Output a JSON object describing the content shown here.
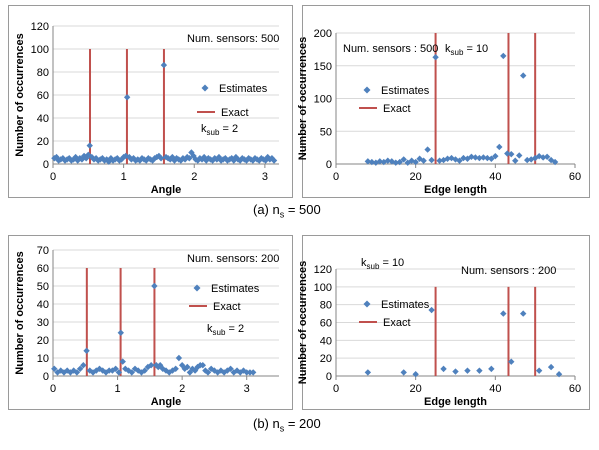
{
  "captions": {
    "a": {
      "prefix": "(a) n",
      "sub": "s",
      "suffix": " = 500"
    },
    "b": {
      "prefix": "(b) n",
      "sub": "s",
      "suffix": " = 200"
    }
  },
  "colors": {
    "estimate": "#4f81bd",
    "exact": "#c0504d",
    "grid": "#d9d9d9",
    "axis": "#868686"
  },
  "chart_data": [
    {
      "id": "a-angle",
      "type": "scatter",
      "xlabel": "Angle",
      "ylabel": "Number of occurrences",
      "xlim": [
        0,
        3.2
      ],
      "ylim": [
        0,
        120
      ],
      "xticks": [
        0,
        1,
        2,
        3
      ],
      "yticks": [
        0,
        20,
        40,
        60,
        80,
        100,
        120
      ],
      "grid": true,
      "legend_position": "right",
      "annotations": {
        "sensors": "Num. sensors: 500",
        "k_prefix": "k",
        "k_sub": "sub",
        "k_suffix": " = 2"
      },
      "series": [
        {
          "name": "Estimates",
          "kind": "markers",
          "points": [
            [
              0.02,
              5
            ],
            [
              0.05,
              6
            ],
            [
              0.08,
              3
            ],
            [
              0.11,
              4
            ],
            [
              0.14,
              5
            ],
            [
              0.17,
              3
            ],
            [
              0.2,
              4
            ],
            [
              0.23,
              5
            ],
            [
              0.26,
              3
            ],
            [
              0.29,
              4
            ],
            [
              0.32,
              6
            ],
            [
              0.35,
              3
            ],
            [
              0.38,
              5
            ],
            [
              0.41,
              4
            ],
            [
              0.44,
              7
            ],
            [
              0.47,
              5
            ],
            [
              0.5,
              8
            ],
            [
              0.52,
              16
            ],
            [
              0.55,
              6
            ],
            [
              0.58,
              4
            ],
            [
              0.61,
              5
            ],
            [
              0.64,
              3
            ],
            [
              0.67,
              4
            ],
            [
              0.7,
              5
            ],
            [
              0.73,
              3
            ],
            [
              0.76,
              4
            ],
            [
              0.79,
              2
            ],
            [
              0.82,
              5
            ],
            [
              0.85,
              3
            ],
            [
              0.88,
              4
            ],
            [
              0.91,
              5
            ],
            [
              0.94,
              3
            ],
            [
              0.97,
              4
            ],
            [
              1.0,
              6
            ],
            [
              1.03,
              7
            ],
            [
              1.05,
              58
            ],
            [
              1.08,
              6
            ],
            [
              1.11,
              4
            ],
            [
              1.14,
              5
            ],
            [
              1.17,
              3
            ],
            [
              1.2,
              4
            ],
            [
              1.23,
              3
            ],
            [
              1.26,
              5
            ],
            [
              1.29,
              4
            ],
            [
              1.32,
              3
            ],
            [
              1.35,
              5
            ],
            [
              1.38,
              4
            ],
            [
              1.41,
              3
            ],
            [
              1.44,
              5
            ],
            [
              1.47,
              6
            ],
            [
              1.5,
              7
            ],
            [
              1.53,
              5
            ],
            [
              1.57,
              86
            ],
            [
              1.6,
              6
            ],
            [
              1.63,
              5
            ],
            [
              1.66,
              4
            ],
            [
              1.69,
              6
            ],
            [
              1.72,
              3
            ],
            [
              1.75,
              5
            ],
            [
              1.78,
              4
            ],
            [
              1.81,
              3
            ],
            [
              1.84,
              5
            ],
            [
              1.87,
              4
            ],
            [
              1.9,
              6
            ],
            [
              1.93,
              5
            ],
            [
              1.96,
              10
            ],
            [
              1.99,
              7
            ],
            [
              2.02,
              4
            ],
            [
              2.05,
              3
            ],
            [
              2.08,
              5
            ],
            [
              2.11,
              4
            ],
            [
              2.14,
              6
            ],
            [
              2.17,
              3
            ],
            [
              2.2,
              5
            ],
            [
              2.23,
              4
            ],
            [
              2.26,
              3
            ],
            [
              2.29,
              5
            ],
            [
              2.32,
              4
            ],
            [
              2.35,
              6
            ],
            [
              2.38,
              3
            ],
            [
              2.41,
              4
            ],
            [
              2.44,
              5
            ],
            [
              2.47,
              3
            ],
            [
              2.5,
              4
            ],
            [
              2.53,
              5
            ],
            [
              2.56,
              3
            ],
            [
              2.59,
              6
            ],
            [
              2.62,
              4
            ],
            [
              2.65,
              3
            ],
            [
              2.68,
              5
            ],
            [
              2.71,
              4
            ],
            [
              2.74,
              3
            ],
            [
              2.77,
              5
            ],
            [
              2.8,
              4
            ],
            [
              2.83,
              3
            ],
            [
              2.86,
              5
            ],
            [
              2.89,
              4
            ],
            [
              2.92,
              3
            ],
            [
              2.95,
              5
            ],
            [
              2.98,
              4
            ],
            [
              3.01,
              3
            ],
            [
              3.04,
              6
            ],
            [
              3.07,
              4
            ],
            [
              3.1,
              5
            ],
            [
              3.13,
              3
            ]
          ]
        },
        {
          "name": "Exact",
          "kind": "lines",
          "positions": [
            0.524,
            1.047,
            1.571
          ],
          "height": 100
        }
      ]
    },
    {
      "id": "a-edge",
      "type": "scatter",
      "xlabel": "Edge length",
      "ylabel": "Number of occurrences",
      "xlim": [
        0,
        60
      ],
      "ylim": [
        0,
        200
      ],
      "xticks": [
        0,
        20,
        40,
        60
      ],
      "yticks": [
        0,
        50,
        100,
        150,
        200
      ],
      "grid": true,
      "legend_position": "top-left",
      "annotations": {
        "sensors": "Num. sensors : 500",
        "k_prefix": "k",
        "k_sub": "sub",
        "k_suffix": " = 10"
      },
      "series": [
        {
          "name": "Estimates",
          "kind": "markers",
          "points": [
            [
              8,
              4
            ],
            [
              9,
              3
            ],
            [
              10,
              2
            ],
            [
              11,
              4
            ],
            [
              12,
              3
            ],
            [
              13,
              5
            ],
            [
              14,
              4
            ],
            [
              15,
              2
            ],
            [
              16,
              3
            ],
            [
              17,
              7
            ],
            [
              18,
              2
            ],
            [
              19,
              5
            ],
            [
              20,
              3
            ],
            [
              21,
              8
            ],
            [
              22,
              5
            ],
            [
              23,
              22
            ],
            [
              24,
              6
            ],
            [
              25,
              163
            ],
            [
              26,
              5
            ],
            [
              27,
              6
            ],
            [
              28,
              8
            ],
            [
              29,
              9
            ],
            [
              30,
              7
            ],
            [
              31,
              5
            ],
            [
              32,
              9
            ],
            [
              33,
              8
            ],
            [
              34,
              11
            ],
            [
              35,
              10
            ],
            [
              36,
              9
            ],
            [
              37,
              10
            ],
            [
              38,
              9
            ],
            [
              39,
              8
            ],
            [
              40,
              12
            ],
            [
              41,
              26
            ],
            [
              42,
              165
            ],
            [
              43,
              16
            ],
            [
              44,
              15
            ],
            [
              45,
              5
            ],
            [
              46,
              13
            ],
            [
              47,
              135
            ],
            [
              48,
              6
            ],
            [
              49,
              7
            ],
            [
              50,
              9
            ],
            [
              51,
              12
            ],
            [
              52,
              10
            ],
            [
              53,
              11
            ],
            [
              54,
              6
            ],
            [
              55,
              3
            ]
          ]
        },
        {
          "name": "Exact",
          "kind": "lines",
          "positions": [
            25,
            43.3,
            50
          ],
          "height": 200
        }
      ]
    },
    {
      "id": "b-angle",
      "type": "scatter",
      "xlabel": "Angle",
      "ylabel": "Number of occurrences",
      "xlim": [
        0,
        3.5
      ],
      "ylim": [
        0,
        70
      ],
      "xticks": [
        0,
        1,
        2,
        3
      ],
      "yticks": [
        0,
        10,
        20,
        30,
        40,
        50,
        60,
        70
      ],
      "grid": true,
      "legend_position": "right",
      "annotations": {
        "sensors": "Num. sensors: 200",
        "k_prefix": "k",
        "k_sub": "sub",
        "k_suffix": " = 2"
      },
      "series": [
        {
          "name": "Estimates",
          "kind": "markers",
          "points": [
            [
              0.02,
              4
            ],
            [
              0.07,
              2
            ],
            [
              0.12,
              3
            ],
            [
              0.17,
              2
            ],
            [
              0.22,
              3
            ],
            [
              0.27,
              2
            ],
            [
              0.32,
              3
            ],
            [
              0.37,
              2
            ],
            [
              0.42,
              4
            ],
            [
              0.47,
              6
            ],
            [
              0.52,
              14
            ],
            [
              0.57,
              3
            ],
            [
              0.62,
              2
            ],
            [
              0.67,
              3
            ],
            [
              0.72,
              4
            ],
            [
              0.77,
              3
            ],
            [
              0.82,
              2
            ],
            [
              0.87,
              3
            ],
            [
              0.92,
              3
            ],
            [
              0.97,
              4
            ],
            [
              1.02,
              2
            ],
            [
              1.05,
              24
            ],
            [
              1.08,
              8
            ],
            [
              1.12,
              4
            ],
            [
              1.17,
              3
            ],
            [
              1.22,
              2
            ],
            [
              1.27,
              4
            ],
            [
              1.32,
              3
            ],
            [
              1.37,
              2
            ],
            [
              1.42,
              3
            ],
            [
              1.47,
              5
            ],
            [
              1.52,
              6
            ],
            [
              1.57,
              50
            ],
            [
              1.6,
              6
            ],
            [
              1.63,
              5
            ],
            [
              1.66,
              6
            ],
            [
              1.7,
              4
            ],
            [
              1.75,
              3
            ],
            [
              1.8,
              2
            ],
            [
              1.85,
              3
            ],
            [
              1.9,
              4
            ],
            [
              1.95,
              10
            ],
            [
              2.0,
              6
            ],
            [
              2.04,
              4
            ],
            [
              2.08,
              5
            ],
            [
              2.12,
              2
            ],
            [
              2.16,
              4
            ],
            [
              2.2,
              3
            ],
            [
              2.24,
              5
            ],
            [
              2.28,
              6
            ],
            [
              2.32,
              6
            ],
            [
              2.36,
              3
            ],
            [
              2.4,
              2
            ],
            [
              2.45,
              4
            ],
            [
              2.5,
              3
            ],
            [
              2.55,
              2
            ],
            [
              2.6,
              3
            ],
            [
              2.65,
              2
            ],
            [
              2.7,
              3
            ],
            [
              2.75,
              4
            ],
            [
              2.8,
              2
            ],
            [
              2.85,
              3
            ],
            [
              2.9,
              2
            ],
            [
              2.95,
              3
            ],
            [
              3.0,
              2
            ],
            [
              3.05,
              2
            ],
            [
              3.1,
              2
            ]
          ]
        },
        {
          "name": "Exact",
          "kind": "lines",
          "positions": [
            0.524,
            1.047,
            1.571
          ],
          "height": 60
        }
      ]
    },
    {
      "id": "b-edge",
      "type": "scatter",
      "xlabel": "Edge length",
      "ylabel": "Number of occurrences",
      "xlim": [
        0,
        60
      ],
      "ylim": [
        0,
        120
      ],
      "xticks": [
        0,
        20,
        40,
        60
      ],
      "yticks": [
        0,
        20,
        40,
        60,
        80,
        100,
        120
      ],
      "grid": true,
      "legend_position": "left",
      "annotations": {
        "sensors": "Num. sensors : 200",
        "k_prefix": "k",
        "k_sub": "sub",
        "k_suffix": " = 10"
      },
      "series": [
        {
          "name": "Estimates",
          "kind": "markers",
          "points": [
            [
              8,
              4
            ],
            [
              17,
              4
            ],
            [
              20,
              2
            ],
            [
              24,
              74
            ],
            [
              27,
              8
            ],
            [
              30,
              5
            ],
            [
              33,
              6
            ],
            [
              36,
              6
            ],
            [
              39,
              8
            ],
            [
              42,
              70
            ],
            [
              44,
              16
            ],
            [
              47,
              70
            ],
            [
              51,
              6
            ],
            [
              54,
              10
            ],
            [
              56,
              2
            ]
          ]
        },
        {
          "name": "Exact",
          "kind": "lines",
          "positions": [
            25,
            43.3,
            50
          ],
          "height": 100
        }
      ]
    }
  ]
}
